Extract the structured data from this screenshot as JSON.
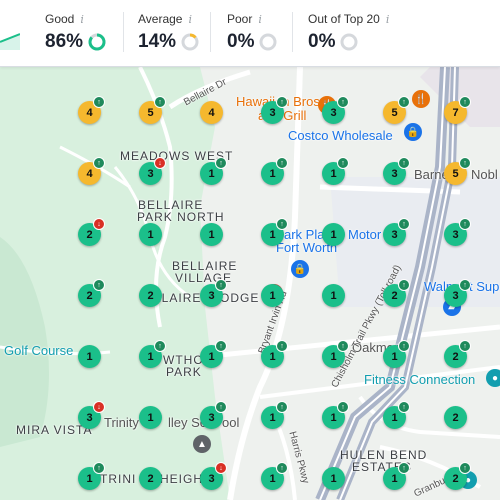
{
  "stats": [
    {
      "label": "Good",
      "info": "i",
      "value": "86%",
      "ring_color": "#1bbf8a",
      "fraction": 0.86
    },
    {
      "label": "Average",
      "info": "i",
      "value": "14%",
      "ring_color": "#f5b82e",
      "fraction": 0.14
    },
    {
      "label": "Poor",
      "info": "i",
      "value": "0%",
      "ring_color": "#d93025",
      "fraction": 0
    },
    {
      "label": "Out of Top 20",
      "info": "i",
      "value": "0%",
      "ring_color": "#9aa0a6",
      "fraction": 0
    }
  ],
  "map": {
    "area_labels": [
      {
        "text": "MEADOWS WEST"
      },
      {
        "text": "BELLAIRE"
      },
      {
        "text": "PARK NORTH"
      },
      {
        "text": "BELLAIRE"
      },
      {
        "text": "VILLAGE"
      },
      {
        "text": "ELLAIRE"
      },
      {
        "text": "ODGE"
      },
      {
        "text": "WTHO"
      },
      {
        "text": "PARK"
      },
      {
        "text": "MIRA VISTA"
      },
      {
        "text": "HULEN BEND"
      },
      {
        "text": "ESTATES"
      },
      {
        "text": "TRINI"
      },
      {
        "text": "HEIGH"
      }
    ],
    "pois": [
      {
        "text": "Hawaiian Bros",
        "kind": "orange"
      },
      {
        "text": "and Grill",
        "kind": "orange"
      },
      {
        "text": "Costco Wholesale",
        "kind": "blue"
      },
      {
        "text": "Barne",
        "kind": "gray"
      },
      {
        "text": "Nobl",
        "kind": "gray"
      },
      {
        "text": "ark Pla",
        "kind": "blue"
      },
      {
        "text": "Motor",
        "kind": "blue"
      },
      {
        "text": "Fort Worth",
        "kind": "blue"
      },
      {
        "text": "Walm",
        "kind": "blue"
      },
      {
        "text": "t Sup",
        "kind": "blue"
      },
      {
        "text": "Golf Course",
        "kind": "teal"
      },
      {
        "text": "Oakmont",
        "kind": "gray"
      },
      {
        "text": "Fitness Connection",
        "kind": "teal"
      },
      {
        "text": "Trinity",
        "kind": "gray"
      },
      {
        "text": "lley Sc",
        "kind": "gray"
      },
      {
        "text": "ool",
        "kind": "gray"
      }
    ],
    "roads": [
      {
        "text": "Bellaire Dr"
      },
      {
        "text": "Bryant Irvin Rd"
      },
      {
        "text": "Chisholm Trail Pkwy (Toll road)"
      },
      {
        "text": "Harris Pkwy"
      },
      {
        "text": "Oakmont"
      },
      {
        "text": "Granbury Rd"
      }
    ],
    "grid_rows": [
      {
        "pins": [
          {
            "v": "4",
            "c": "yellow",
            "t": "up"
          },
          {
            "v": "5",
            "c": "yellow",
            "t": "up"
          },
          {
            "v": "4",
            "c": "yellow",
            "t": ""
          },
          {
            "v": "3",
            "c": "green",
            "t": "up"
          },
          {
            "v": "3",
            "c": "green",
            "t": "up"
          },
          {
            "v": "5",
            "c": "yellow",
            "t": "up"
          },
          {
            "v": "7",
            "c": "yellow",
            "t": "up"
          }
        ]
      },
      {
        "pins": [
          {
            "v": "4",
            "c": "yellow",
            "t": "up"
          },
          {
            "v": "3",
            "c": "green",
            "t": "down"
          },
          {
            "v": "1",
            "c": "green",
            "t": "up"
          },
          {
            "v": "1",
            "c": "green",
            "t": "up"
          },
          {
            "v": "1",
            "c": "green",
            "t": "up"
          },
          {
            "v": "3",
            "c": "green",
            "t": "up"
          },
          {
            "v": "5",
            "c": "yellow",
            "t": "up"
          }
        ]
      },
      {
        "pins": [
          {
            "v": "2",
            "c": "green",
            "t": "down"
          },
          {
            "v": "1",
            "c": "green",
            "t": ""
          },
          {
            "v": "1",
            "c": "green",
            "t": ""
          },
          {
            "v": "1",
            "c": "green",
            "t": "up"
          },
          {
            "v": "1",
            "c": "green",
            "t": ""
          },
          {
            "v": "3",
            "c": "green",
            "t": "up"
          },
          {
            "v": "3",
            "c": "green",
            "t": "up"
          }
        ]
      },
      {
        "pins": [
          {
            "v": "2",
            "c": "green",
            "t": "up"
          },
          {
            "v": "2",
            "c": "green",
            "t": ""
          },
          {
            "v": "3",
            "c": "green",
            "t": "up"
          },
          {
            "v": "1",
            "c": "green",
            "t": ""
          },
          {
            "v": "1",
            "c": "green",
            "t": ""
          },
          {
            "v": "2",
            "c": "green",
            "t": "up"
          },
          {
            "v": "3",
            "c": "green",
            "t": "up"
          }
        ]
      },
      {
        "pins": [
          {
            "v": "1",
            "c": "green",
            "t": ""
          },
          {
            "v": "1",
            "c": "green",
            "t": "up"
          },
          {
            "v": "1",
            "c": "green",
            "t": "up"
          },
          {
            "v": "1",
            "c": "green",
            "t": "up"
          },
          {
            "v": "1",
            "c": "green",
            "t": "up"
          },
          {
            "v": "1",
            "c": "green",
            "t": "up"
          },
          {
            "v": "2",
            "c": "green",
            "t": "up"
          }
        ]
      },
      {
        "pins": [
          {
            "v": "3",
            "c": "green",
            "t": "down"
          },
          {
            "v": "1",
            "c": "green",
            "t": ""
          },
          {
            "v": "3",
            "c": "green",
            "t": "up"
          },
          {
            "v": "1",
            "c": "green",
            "t": "up"
          },
          {
            "v": "1",
            "c": "green",
            "t": "up"
          },
          {
            "v": "1",
            "c": "green",
            "t": "up"
          },
          {
            "v": "2",
            "c": "green",
            "t": ""
          }
        ]
      },
      {
        "pins": [
          {
            "v": "1",
            "c": "green",
            "t": "up"
          },
          {
            "v": "2",
            "c": "green",
            "t": ""
          },
          {
            "v": "3",
            "c": "green",
            "t": "down"
          },
          {
            "v": "1",
            "c": "green",
            "t": "up"
          },
          {
            "v": "1",
            "c": "green",
            "t": ""
          },
          {
            "v": "1",
            "c": "green",
            "t": "up"
          },
          {
            "v": "2",
            "c": "green",
            "t": "up"
          }
        ]
      }
    ]
  }
}
